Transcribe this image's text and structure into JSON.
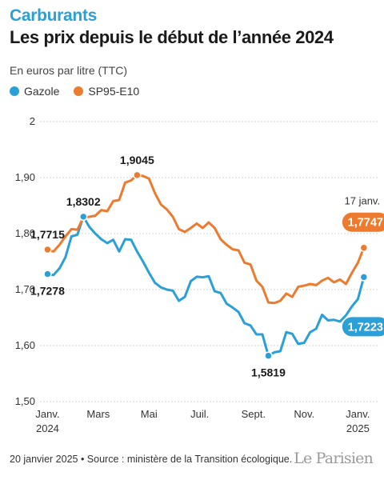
{
  "header": {
    "kicker": "Carburants",
    "title": "Les prix depuis le début de l’année 2024",
    "subtitle": "En euros par litre (TTC)"
  },
  "footer": {
    "source": "20 janvier 2025 • Source : ministère de la Transition écologique.",
    "logo": "Le Parisien"
  },
  "colors": {
    "gazole": "#2a9fd8",
    "sp95": "#ec7b2f",
    "grid": "#c8c8c8",
    "text": "#1a1a1a"
  },
  "chart_data": {
    "type": "line",
    "ylim": [
      1.5,
      2.0
    ],
    "yticks": [
      2.0,
      1.9,
      1.8,
      1.7,
      1.6,
      1.5
    ],
    "ytick_labels": [
      "2",
      "1,90",
      "1,80",
      "1,70",
      "1,60",
      "1,50"
    ],
    "xticks": [
      {
        "week": 1,
        "label": "Janv.",
        "sub": "2024"
      },
      {
        "week": 9.5,
        "label": "Mars",
        "sub": ""
      },
      {
        "week": 18,
        "label": "Mai",
        "sub": ""
      },
      {
        "week": 26.5,
        "label": "Juil.",
        "sub": ""
      },
      {
        "week": 35.5,
        "label": "Sept.",
        "sub": ""
      },
      {
        "week": 44,
        "label": "Nov.",
        "sub": ""
      },
      {
        "week": 53,
        "label": "Janv.",
        "sub": "2025"
      }
    ],
    "xlim": [
      0,
      55.5
    ],
    "series": [
      {
        "name": "Gazole",
        "color": "#2a9fd8",
        "values": [
          1.7278,
          1.726,
          1.738,
          1.758,
          1.795,
          1.798,
          1.8302,
          1.812,
          1.8,
          1.79,
          1.783,
          1.789,
          1.768,
          1.79,
          1.789,
          1.768,
          1.75,
          1.73,
          1.712,
          1.704,
          1.7,
          1.698,
          1.68,
          1.687,
          1.715,
          1.723,
          1.722,
          1.724,
          1.697,
          1.694,
          1.675,
          1.668,
          1.66,
          1.64,
          1.636,
          1.62,
          1.62,
          1.5819,
          1.588,
          1.59,
          1.624,
          1.621,
          1.603,
          1.605,
          1.624,
          1.63,
          1.655,
          1.645,
          1.646,
          1.643,
          1.654,
          1.67,
          1.683,
          1.7223
        ]
      },
      {
        "name": "SP95-E10",
        "color": "#ec7b2f",
        "values": [
          1.7715,
          1.768,
          1.78,
          1.795,
          1.808,
          1.807,
          1.829,
          1.83,
          1.832,
          1.842,
          1.84,
          1.858,
          1.86,
          1.891,
          1.895,
          1.9045,
          1.903,
          1.898,
          1.872,
          1.852,
          1.843,
          1.83,
          1.808,
          1.803,
          1.81,
          1.818,
          1.81,
          1.82,
          1.81,
          1.79,
          1.78,
          1.772,
          1.77,
          1.748,
          1.745,
          1.716,
          1.705,
          1.677,
          1.676,
          1.68,
          1.693,
          1.687,
          1.705,
          1.707,
          1.71,
          1.708,
          1.716,
          1.721,
          1.713,
          1.718,
          1.71,
          1.73,
          1.748,
          1.7747
        ]
      }
    ],
    "annotations": [
      {
        "series": 0,
        "index": 0,
        "label": "1,7278",
        "pos": "below"
      },
      {
        "series": 1,
        "index": 0,
        "label": "1,7715",
        "pos": "above"
      },
      {
        "series": 0,
        "index": 6,
        "label": "1,8302",
        "pos": "above"
      },
      {
        "series": 1,
        "index": 15,
        "label": "1,9045",
        "pos": "above"
      },
      {
        "series": 0,
        "index": 37,
        "label": "1,5819",
        "pos": "below"
      },
      {
        "series": 1,
        "index": 53,
        "label": "1,7747",
        "pos": "badge-above"
      },
      {
        "series": 0,
        "index": 53,
        "label": "1,7223",
        "pos": "badge-below"
      }
    ],
    "date_note": "17 janv."
  }
}
